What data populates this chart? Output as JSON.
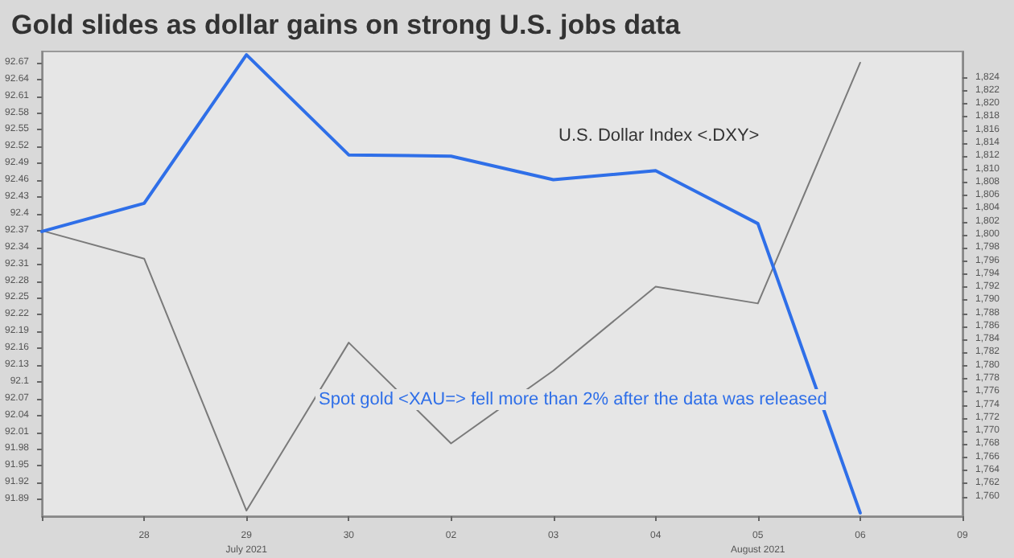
{
  "chart_data": {
    "type": "line",
    "title": "Gold slides as dollar gains on strong U.S. jobs data",
    "categories": [
      null,
      "28",
      "29\nJuly 2021",
      "30",
      "02",
      "03",
      "04",
      "05\nAugust 2021",
      "06",
      "09"
    ],
    "series": [
      {
        "color": "#7a7a7a",
        "values": [
          92.37,
          92.32,
          91.87,
          92.17,
          91.99,
          92.12,
          92.27,
          92.24,
          92.67,
          null
        ]
      },
      {
        "color": "#2f6fe8",
        "axis": "y2",
        "values": [
          1800.5,
          1804.8,
          1827.5,
          1812.2,
          1812,
          1808.4,
          1809.8,
          1801.7,
          1757.5,
          null
        ]
      }
    ],
    "ylim": [
      91.86,
      92.69
    ],
    "yticks": [
      91.89,
      91.92,
      91.95,
      91.98,
      92.01,
      92.04,
      92.07,
      92.1,
      92.13,
      92.16,
      92.19,
      92.22,
      92.25,
      92.28,
      92.31,
      92.34,
      92.37,
      92.4,
      92.43,
      92.46,
      92.49,
      92.52,
      92.55,
      92.58,
      92.61,
      92.64,
      92.67
    ],
    "y2lim": [
      1757,
      1828
    ],
    "y2ticks": [
      {
        "value": 1760,
        "label": "1,760"
      },
      {
        "value": 1762,
        "label": "1,762"
      },
      {
        "value": 1764,
        "label": "1,764"
      },
      {
        "value": 1766,
        "label": "1,766"
      },
      {
        "value": 1768,
        "label": "1,768"
      },
      {
        "value": 1770,
        "label": "1,770"
      },
      {
        "value": 1772,
        "label": "1,772"
      },
      {
        "value": 1774,
        "label": "1,774"
      },
      {
        "value": 1776,
        "label": "1,776"
      },
      {
        "value": 1778,
        "label": "1,778"
      },
      {
        "value": 1780,
        "label": "1,780"
      },
      {
        "value": 1782,
        "label": "1,782"
      },
      {
        "value": 1784,
        "label": "1,784"
      },
      {
        "value": 1786,
        "label": "1,786"
      },
      {
        "value": 1788,
        "label": "1,788"
      },
      {
        "value": 1790,
        "label": "1,790"
      },
      {
        "value": 1792,
        "label": "1,792"
      },
      {
        "value": 1794,
        "label": "1,794"
      },
      {
        "value": 1796,
        "label": "1,796"
      },
      {
        "value": 1798,
        "label": "1,798"
      },
      {
        "value": 1800,
        "label": "1,800"
      },
      {
        "value": 1802,
        "label": "1,802"
      },
      {
        "value": 1804,
        "label": "1,804"
      },
      {
        "value": 1806,
        "label": "1,806"
      },
      {
        "value": 1808,
        "label": "1,808"
      },
      {
        "value": 1810,
        "label": "1,810"
      },
      {
        "value": 1812,
        "label": "1,812"
      },
      {
        "value": 1814,
        "label": "1,814"
      },
      {
        "value": 1816,
        "label": "1,816"
      },
      {
        "value": 1818,
        "label": "1,818"
      },
      {
        "value": 1820,
        "label": "1,820"
      },
      {
        "value": 1822,
        "label": "1,822"
      },
      {
        "value": 1824,
        "label": "1,824"
      }
    ],
    "annotations": [
      "U.S. Dollar Index <.DXY>",
      "Spot gold <XAU=> fell more than 2% after the data was released"
    ],
    "marker": "none",
    "line_style": "solid",
    "grid": false
  }
}
